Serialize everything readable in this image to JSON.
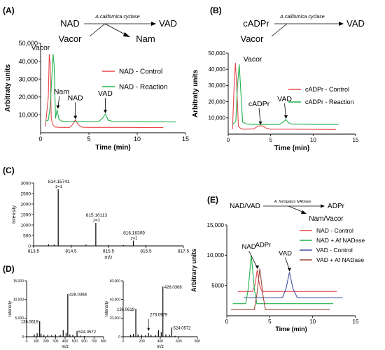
{
  "panels": [
    {
      "id": "A",
      "label": "(A)"
    },
    {
      "id": "B",
      "label": "(B)"
    },
    {
      "id": "C",
      "label": "(C)"
    },
    {
      "id": "D",
      "label": "(D)"
    },
    {
      "id": "E",
      "label": "(E)"
    }
  ],
  "schemes": {
    "A": {
      "substrate1": "NAD",
      "substrate2": "Vacor",
      "enzyme": "A.californica cyclase",
      "product1": "VAD",
      "product2": "Nam"
    },
    "B": {
      "substrate1": "cADPr",
      "substrate2": "Vacor",
      "enzyme": "A.californica cyclase",
      "product1": "VAD"
    },
    "E": {
      "substrate1": "NAD/VAD",
      "enzyme": "A. fumigatus NADase",
      "product1": "ADPr",
      "product2": "Nam/Vacor"
    }
  },
  "colors": {
    "red": "#e8474b",
    "green": "#22b14c",
    "blue": "#3f4fa0",
    "brown": "#9b4a3c",
    "black": "#000000"
  },
  "chart_data": [
    {
      "panel": "A",
      "type": "line",
      "xlabel": "Time (min)",
      "ylabel": "Arbitraty units",
      "xlim": [
        0,
        15
      ],
      "ylim": [
        0,
        50000
      ],
      "xticks": [
        "0",
        "5",
        "10",
        "15"
      ],
      "yticks": [
        "10,000",
        "20,000",
        "30,000",
        "40,000",
        "50,000"
      ],
      "legend_position": "right",
      "series": [
        {
          "name": "NAD - Control",
          "color": "#e8474b",
          "x": [
            0.5,
            0.8,
            0.9,
            1.0,
            1.1,
            1.25,
            1.5,
            2,
            3,
            3.3,
            3.6,
            3.9,
            4.3,
            5,
            8,
            12.7
          ],
          "y": [
            3500,
            20000,
            44000,
            38000,
            8000,
            4500,
            3200,
            3000,
            3000,
            4500,
            7200,
            4500,
            3100,
            3000,
            3000,
            2900
          ]
        },
        {
          "name": "NAD - Reaction",
          "color": "#22b14c",
          "x": [
            0.5,
            0.8,
            1.0,
            1.3,
            1.4,
            1.55,
            1.7,
            1.9,
            2.2,
            3,
            6,
            6.4,
            6.7,
            7.0,
            7.5,
            10,
            14
          ],
          "y": [
            6500,
            7000,
            15000,
            44000,
            38000,
            8000,
            13000,
            7500,
            6500,
            6200,
            6200,
            8000,
            10500,
            7000,
            6300,
            6200,
            6000
          ]
        }
      ],
      "annotations": [
        {
          "text": "Vacor",
          "x": 1.4,
          "y": 44000
        },
        {
          "text": "Nam",
          "x": 1.8,
          "y": 13000
        },
        {
          "text": "NAD",
          "x": 3.6,
          "y": 7200
        },
        {
          "text": "VAD",
          "x": 6.7,
          "y": 10500
        }
      ]
    },
    {
      "panel": "B",
      "type": "line",
      "xlabel": "Time (min)",
      "ylabel": "Arbitraty units",
      "xlim": [
        0,
        15
      ],
      "ylim": [
        0,
        50000
      ],
      "xticks": [
        "0",
        "5",
        "10",
        "15"
      ],
      "yticks": [
        "10,000",
        "20,000",
        "30,000",
        "40,000",
        "50,000"
      ],
      "legend_position": "right",
      "series": [
        {
          "name": "cADPr - Control",
          "color": "#e8474b",
          "x": [
            0.5,
            0.7,
            0.85,
            1.0,
            1.2,
            1.5,
            2,
            3,
            3.5,
            4.0,
            4.5,
            5,
            8,
            12.7
          ],
          "y": [
            3000,
            30000,
            44000,
            30000,
            5000,
            3200,
            3000,
            3200,
            5000,
            5200,
            3600,
            3000,
            3000,
            2900
          ]
        },
        {
          "name": "cADPr - Reaction",
          "color": "#22b14c",
          "x": [
            0.5,
            0.9,
            1.1,
            1.3,
            1.5,
            1.7,
            2.2,
            3,
            6,
            6.5,
            6.8,
            7.1,
            7.5,
            10,
            13
          ],
          "y": [
            6000,
            8000,
            30000,
            43000,
            25000,
            7500,
            6200,
            6000,
            6000,
            7500,
            9000,
            7000,
            6200,
            6000,
            6000
          ]
        }
      ],
      "annotations": [
        {
          "text": "Vacor",
          "x": 1.3,
          "y": 43000
        },
        {
          "text": "cADPr",
          "x": 3.8,
          "y": 5200
        },
        {
          "text": "VAD",
          "x": 6.8,
          "y": 9000
        }
      ]
    },
    {
      "panel": "C",
      "type": "bar",
      "xlabel": "m/z",
      "ylabel": "Intensity",
      "xlim": [
        813.5,
        817.5
      ],
      "ylim": [
        0,
        3000
      ],
      "xticks": [
        "813.5",
        "814.5",
        "815.5",
        "816.5",
        "817.5"
      ],
      "yticks": [
        "0",
        "500",
        "1000",
        "1500",
        "2000",
        "2500",
        "3000"
      ],
      "x": [
        813.9,
        814.05,
        814.15741,
        814.5,
        814.9,
        815.16113,
        815.5,
        815.9,
        816.16309,
        816.5
      ],
      "values": [
        80,
        60,
        2700,
        40,
        60,
        1100,
        40,
        40,
        250,
        30
      ],
      "peak_labels": [
        {
          "mz": "814.15741",
          "charge": "z=1",
          "x": 814.15741,
          "y": 2700
        },
        {
          "mz": "815.16113",
          "charge": "z=1",
          "x": 815.16113,
          "y": 1100
        },
        {
          "mz": "816.16309",
          "charge": "z=1",
          "x": 816.16309,
          "y": 250
        }
      ]
    },
    {
      "panel": "D1",
      "type": "bar",
      "xlabel": "m/z",
      "ylabel": "Intensity",
      "xlim": [
        0,
        800
      ],
      "ylim": [
        0,
        15000
      ],
      "xticks": [
        "0",
        "100",
        "200",
        "300",
        "400",
        "500",
        "600",
        "700",
        "800"
      ],
      "yticks": [
        "0",
        "5,000",
        "10,000",
        "15,000"
      ],
      "x": [
        80,
        110,
        136.0619,
        150,
        180,
        220,
        260,
        300,
        350,
        380,
        410,
        428.0368,
        450,
        480,
        524.0572,
        560,
        600
      ],
      "values": [
        600,
        900,
        4200,
        800,
        500,
        500,
        400,
        600,
        500,
        1800,
        1000,
        11500,
        600,
        500,
        1500,
        300,
        200
      ],
      "peak_labels": [
        {
          "text": "136.0619",
          "x": 136.0619,
          "y": 4200
        },
        {
          "text": "428.0368",
          "x": 428.0368,
          "y": 11500
        },
        {
          "text": "524.0572",
          "x": 524.0572,
          "y": 1500
        }
      ]
    },
    {
      "panel": "D2",
      "type": "bar",
      "xlabel": "m/z",
      "ylabel": "Intensity",
      "xlim": [
        0,
        800
      ],
      "ylim": [
        0,
        60000
      ],
      "xticks": [
        "0",
        "200",
        "400",
        "600",
        "800"
      ],
      "yticks": [
        "0",
        "20,000",
        "40,000",
        "60,000"
      ],
      "x": [
        80,
        110,
        136.0619,
        160,
        200,
        240,
        273.0979,
        300,
        350,
        380,
        410,
        428.0368,
        460,
        500,
        524.0572,
        560
      ],
      "values": [
        2000,
        3000,
        30000,
        2500,
        2000,
        1500,
        4000,
        2000,
        1500,
        7000,
        5000,
        54000,
        2500,
        2000,
        10000,
        1000
      ],
      "peak_labels": [
        {
          "text": "136.0619",
          "x": 136.0619,
          "y": 30000
        },
        {
          "text": "273.0979",
          "x": 273.0979,
          "y": 4000
        },
        {
          "text": "428.0368",
          "x": 428.0368,
          "y": 54000
        },
        {
          "text": "524.0572",
          "x": 524.0572,
          "y": 10000
        }
      ]
    },
    {
      "panel": "E",
      "type": "line",
      "xlabel": "Time (min)",
      "ylabel": "Arbitrary units",
      "xlim": [
        0,
        15
      ],
      "ylim": [
        0,
        15000
      ],
      "xticks": [
        "0",
        "5",
        "10",
        "15"
      ],
      "yticks": [
        "5000",
        "10,000",
        "15,000"
      ],
      "legend_position": "right",
      "series": [
        {
          "name": "NAD - Control",
          "color": "#e8474b",
          "x": [
            1.3,
            3.0,
            3.3,
            3.55,
            3.8,
            4.1,
            6,
            10,
            12.8
          ],
          "y": [
            4000,
            4000,
            5200,
            7600,
            5200,
            4000,
            4000,
            4000,
            4000
          ]
        },
        {
          "name": "NAD + Af NADase",
          "color": "#22b14c",
          "x": [
            0.7,
            2.2,
            2.5,
            2.85,
            3.2,
            3.5,
            6,
            10,
            12.4
          ],
          "y": [
            2000,
            2000,
            4500,
            10000,
            4500,
            2000,
            2000,
            2000,
            2000
          ]
        },
        {
          "name": "VAD - Control",
          "color": "#3f4fa0",
          "x": [
            2.0,
            5,
            6.5,
            6.9,
            7.3,
            7.7,
            8.2,
            10,
            13.5
          ],
          "y": [
            3000,
            3000,
            3000,
            4500,
            7200,
            4500,
            3000,
            3000,
            3000
          ]
        },
        {
          "name": "VAD + Af NADase",
          "color": "#9b4a3c",
          "x": [
            0.5,
            3.2,
            3.5,
            3.85,
            4.2,
            4.5,
            6,
            10,
            12
          ],
          "y": [
            1000,
            1000,
            3500,
            7800,
            3500,
            1000,
            1000,
            1000,
            1000
          ]
        }
      ],
      "annotations": [
        {
          "text": "ADPr",
          "x": 3.8,
          "y": 10000
        },
        {
          "text": "NAD",
          "x": 3.55,
          "y": 7600
        },
        {
          "text": "VAD",
          "x": 7.3,
          "y": 7200
        }
      ]
    }
  ]
}
